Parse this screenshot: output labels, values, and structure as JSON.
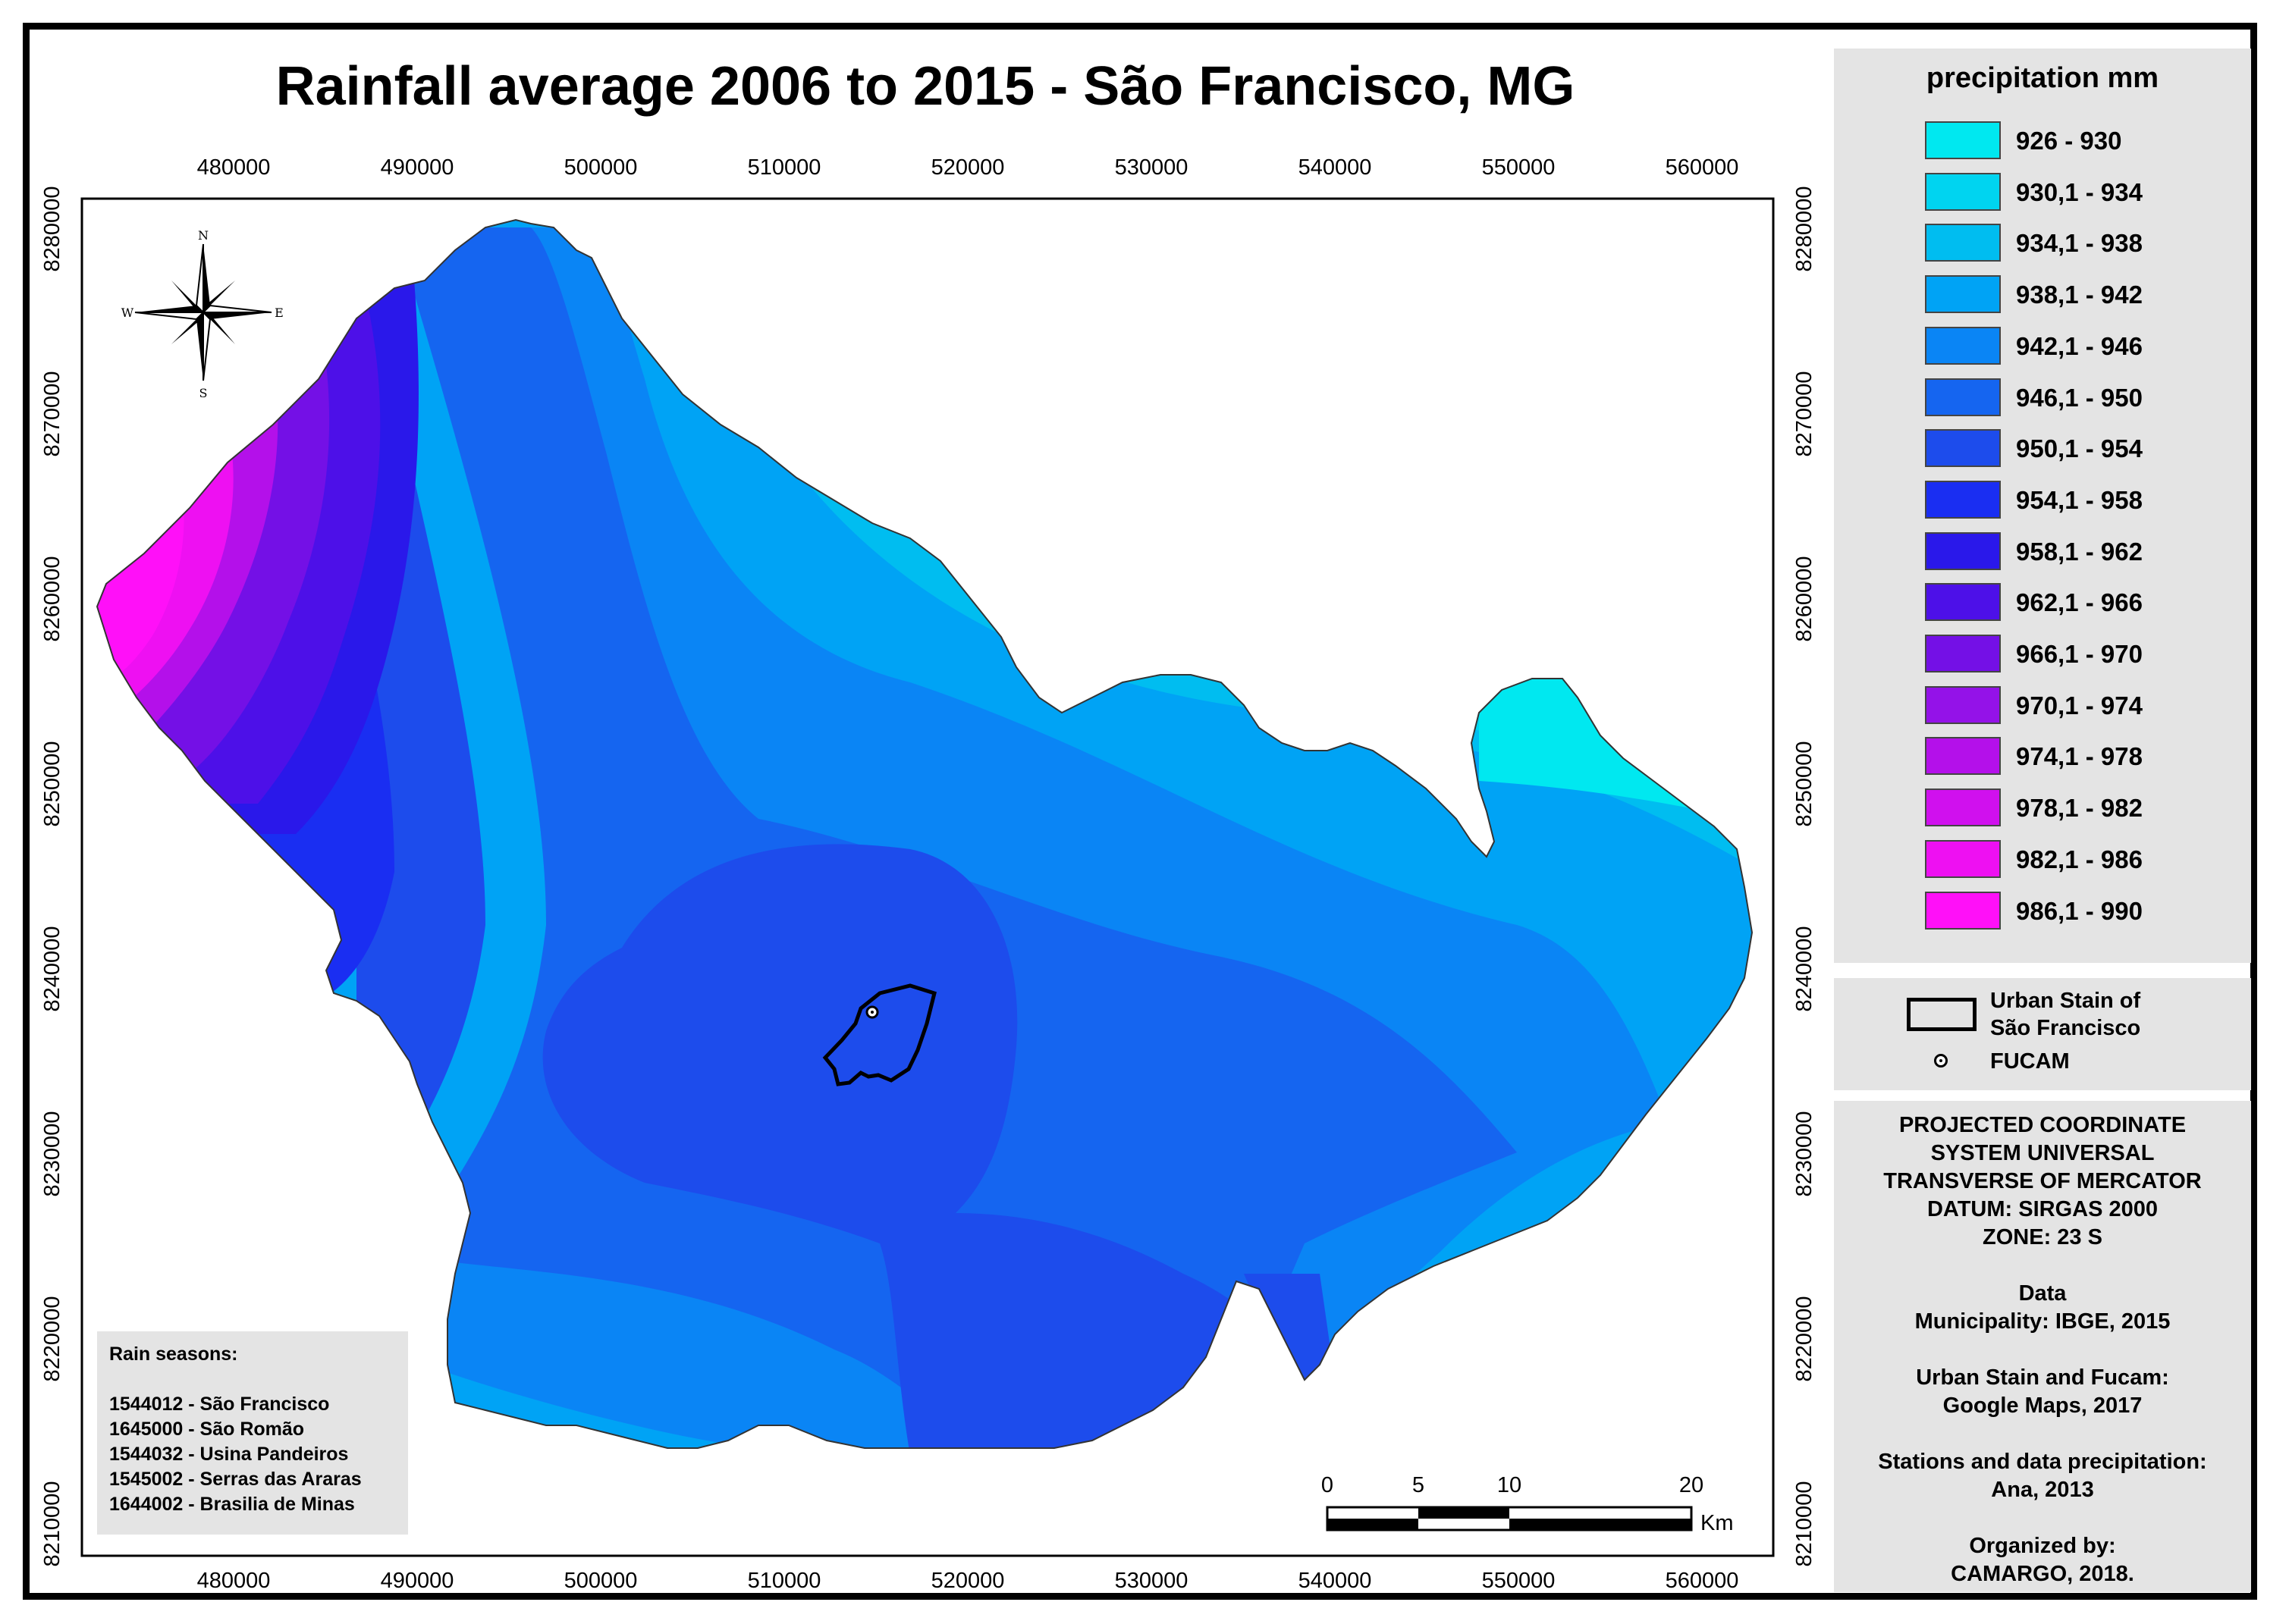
{
  "title": "Rainfall average 2006 to 2015 - São Francisco, MG",
  "colors": {
    "c926": "#00e8f0",
    "c930": "#00d4f0",
    "c934": "#00bdf0",
    "c938": "#00a3f5",
    "c942": "#0a85f5",
    "c946": "#1565f0",
    "c950": "#1d4cec",
    "c954": "#1a2ef2",
    "c958": "#2a18ea",
    "c962": "#4d10e8",
    "c966": "#7410e6",
    "c970": "#9412e8",
    "c974": "#b410ea",
    "c978": "#d010ee",
    "c982": "#ee10f2",
    "c986": "#ff10f8",
    "panel": "#e4e4e4"
  },
  "axes": {
    "x_ticks": [
      "480000",
      "490000",
      "500000",
      "510000",
      "520000",
      "530000",
      "540000",
      "550000",
      "560000"
    ],
    "y_ticks": [
      "8280000",
      "8270000",
      "8260000",
      "8250000",
      "8240000",
      "8230000",
      "8220000",
      "8210000"
    ]
  },
  "north_arrow": {
    "n": "N",
    "s": "S",
    "e": "E",
    "w": "W"
  },
  "scale_bar": {
    "labels": [
      "0",
      "5",
      "10",
      "20"
    ],
    "unit": "Km"
  },
  "legend": {
    "title": "precipitation mm",
    "items": [
      {
        "label": "926 - 930",
        "color": "#00e8f0"
      },
      {
        "label": "930,1 - 934",
        "color": "#00d4f0"
      },
      {
        "label": "934,1 - 938",
        "color": "#00bdf0"
      },
      {
        "label": "938,1 - 942",
        "color": "#00a3f5"
      },
      {
        "label": "942,1 - 946",
        "color": "#0a85f5"
      },
      {
        "label": "946,1 - 950",
        "color": "#1565f0"
      },
      {
        "label": "950,1 - 954",
        "color": "#1d4cec"
      },
      {
        "label": "954,1 - 958",
        "color": "#1a2ef2"
      },
      {
        "label": "958,1 - 962",
        "color": "#2a18ea"
      },
      {
        "label": "962,1 - 966",
        "color": "#4d10e8"
      },
      {
        "label": "966,1 - 970",
        "color": "#7410e6"
      },
      {
        "label": "970,1 - 974",
        "color": "#9412e8"
      },
      {
        "label": "974,1 - 978",
        "color": "#b410ea"
      },
      {
        "label": "978,1 - 982",
        "color": "#d010ee"
      },
      {
        "label": "982,1 - 986",
        "color": "#ee10f2"
      },
      {
        "label": "986,1 - 990",
        "color": "#ff10f8"
      }
    ]
  },
  "legend2": {
    "urban_line1": "Urban Stain of",
    "urban_line2": "São Francisco",
    "fucam": "FUCAM"
  },
  "info": {
    "projection": [
      "PROJECTED COORDINATE",
      "SYSTEM UNIVERSAL",
      "TRANSVERSE OF MERCATOR",
      "DATUM: SIRGAS 2000",
      "ZONE: 23 S"
    ],
    "data_title": "Data",
    "municipality": "Municipality: IBGE, 2015",
    "urban_src1": "Urban Stain and Fucam:",
    "urban_src2": "Google Maps, 2017",
    "stations1": "Stations and data precipitation:",
    "stations2": "Ana, 2013",
    "organized1": "Organized by:",
    "organized2": "CAMARGO, 2018."
  },
  "rain_seasons": {
    "title": "Rain seasons:",
    "stations": [
      "1544012 - São Francisco",
      "1645000 - São Romão",
      "1544032 - Usina Pandeiros",
      "1545002 - Serras das Araras",
      "1644002 - Brasilia de Minas"
    ]
  }
}
